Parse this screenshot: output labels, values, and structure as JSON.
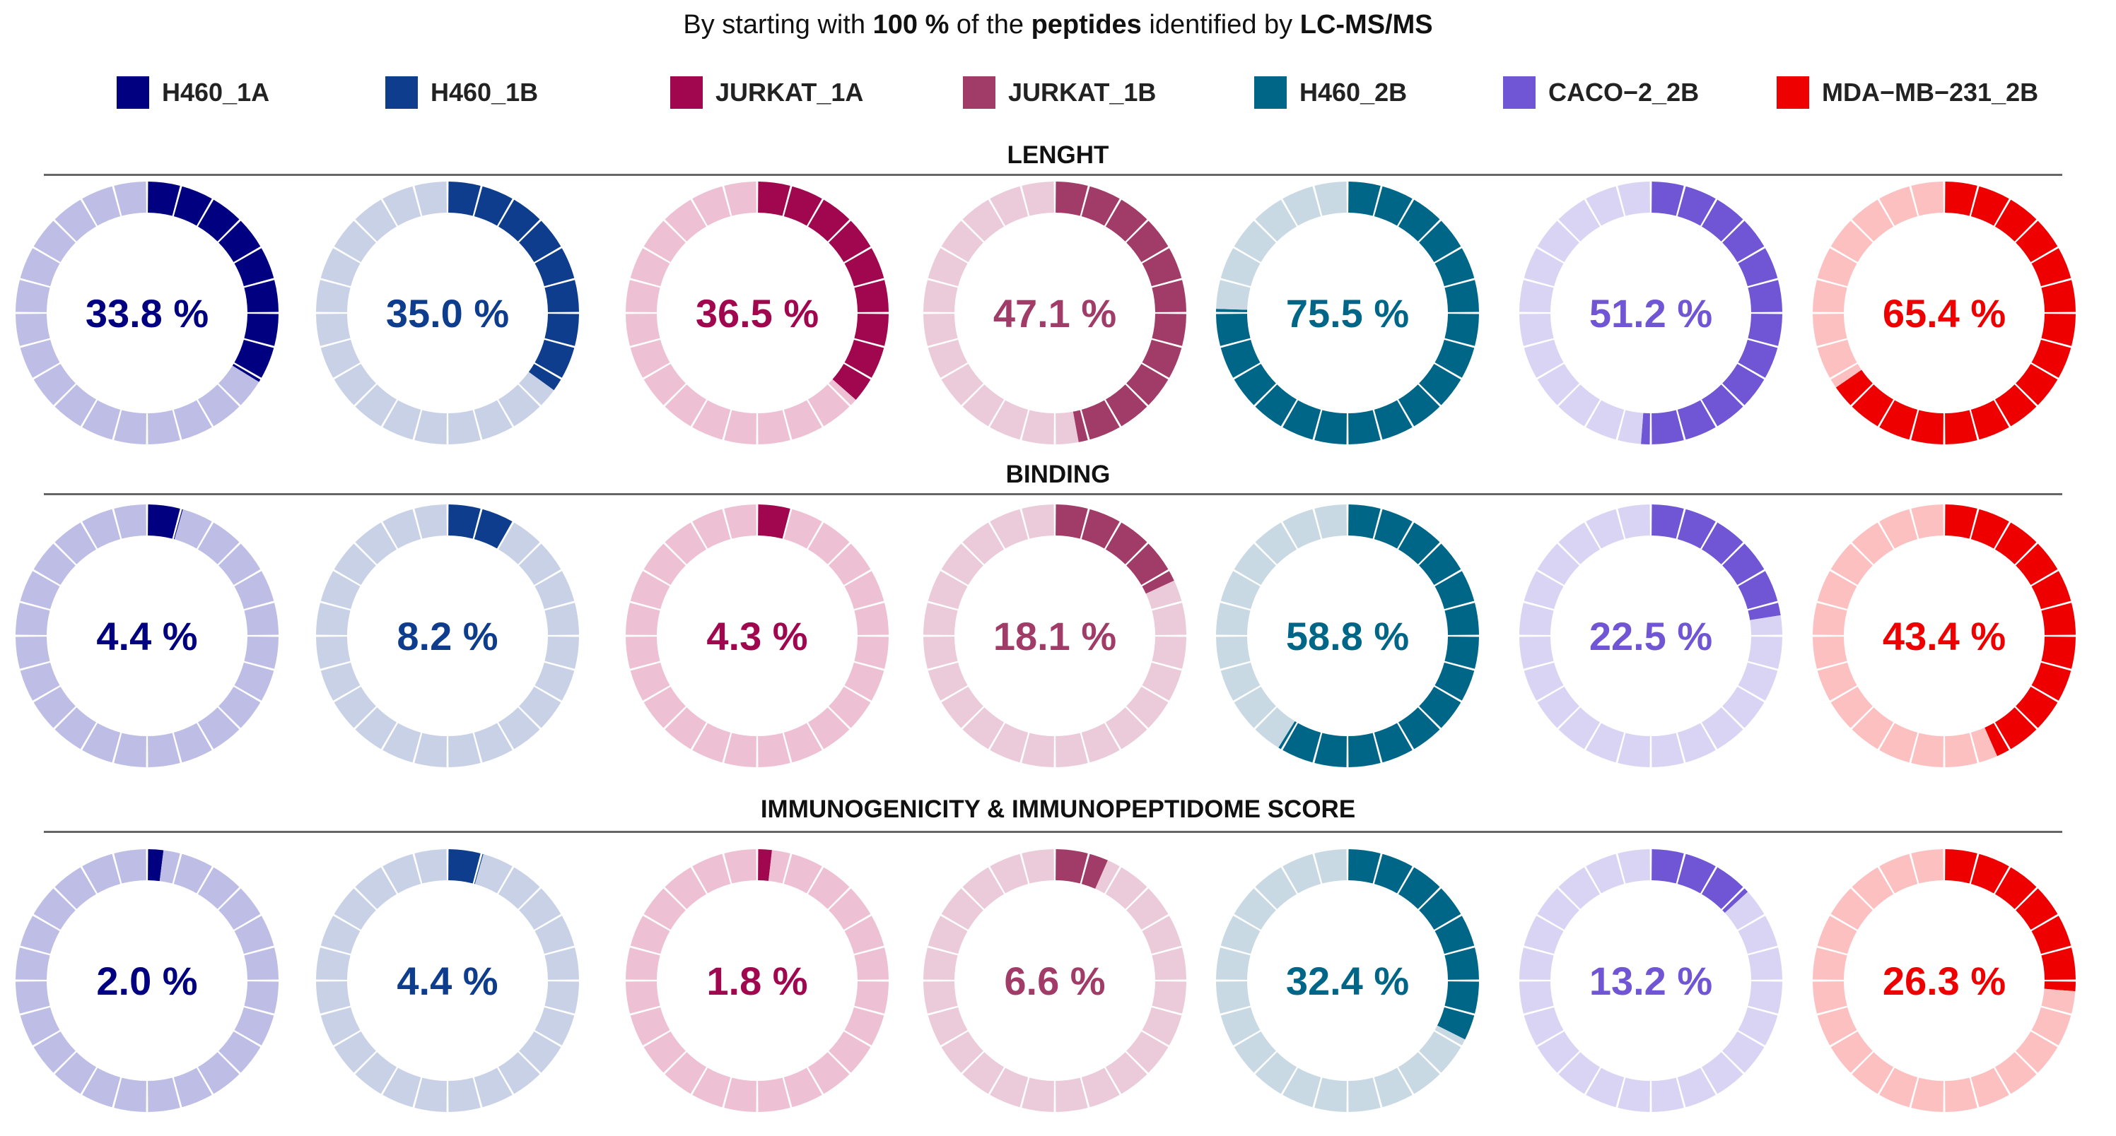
{
  "title": {
    "prefix": "By starting with ",
    "bold1": "100 %",
    "mid1": " of the ",
    "bold2": "peptides",
    "mid2": " identified by ",
    "bold3": "LC-MS/MS"
  },
  "legend": [
    {
      "label": "H460_1A",
      "color": "#000080"
    },
    {
      "label": "H460_1B",
      "color": "#0d3d8c"
    },
    {
      "label": "JURKAT_1A",
      "color": "#a0074f"
    },
    {
      "label": "JURKAT_1B",
      "color": "#a13b68"
    },
    {
      "label": "H460_2B",
      "color": "#006688"
    },
    {
      "label": "CACO−2_2B",
      "color": "#7055d4"
    },
    {
      "label": "MDA−MB−231_2B",
      "color": "#ee0000"
    }
  ],
  "chart_data": {
    "type": "donut",
    "title": "By starting with 100 % of the peptides identified by LC-MS/MS",
    "segments_per_ring": 24,
    "series_names": [
      "H460_1A",
      "H460_1B",
      "JURKAT_1A",
      "JURKAT_1B",
      "H460_2B",
      "CACO−2_2B",
      "MDA−MB−231_2B"
    ],
    "colors": [
      "#000080",
      "#0d3d8c",
      "#a0074f",
      "#a13b68",
      "#006688",
      "#7055d4",
      "#ee0000"
    ],
    "light_colors": [
      "#bdbde6",
      "#c8d1e6",
      "#eec0d4",
      "#ebcad9",
      "#c8d9e3",
      "#d9d4f3",
      "#fcc0c0"
    ],
    "rows": [
      {
        "name": "LENGHT",
        "values": [
          33.8,
          35.0,
          36.5,
          47.1,
          75.5,
          51.2,
          65.4
        ],
        "labels": [
          "33.8 %",
          "35.0 %",
          "36.5 %",
          "47.1 %",
          "75.5 %",
          "51.2 %",
          "65.4 %"
        ]
      },
      {
        "name": "BINDING",
        "values": [
          4.4,
          8.2,
          4.3,
          18.1,
          58.8,
          22.5,
          43.4
        ],
        "labels": [
          "4.4 %",
          "8.2 %",
          "4.3 %",
          "18.1 %",
          "58.8 %",
          "22.5 %",
          "43.4 %"
        ]
      },
      {
        "name": "IMMUNOGENICITY & IMMUNOPEPTIDOME SCORE",
        "values": [
          2.0,
          4.4,
          1.8,
          6.6,
          32.4,
          13.2,
          26.3
        ],
        "labels": [
          "2.0 %",
          "4.4 %",
          "1.8 %",
          "6.6 %",
          "32.4 %",
          "13.2 %",
          "26.3 %"
        ]
      }
    ]
  }
}
